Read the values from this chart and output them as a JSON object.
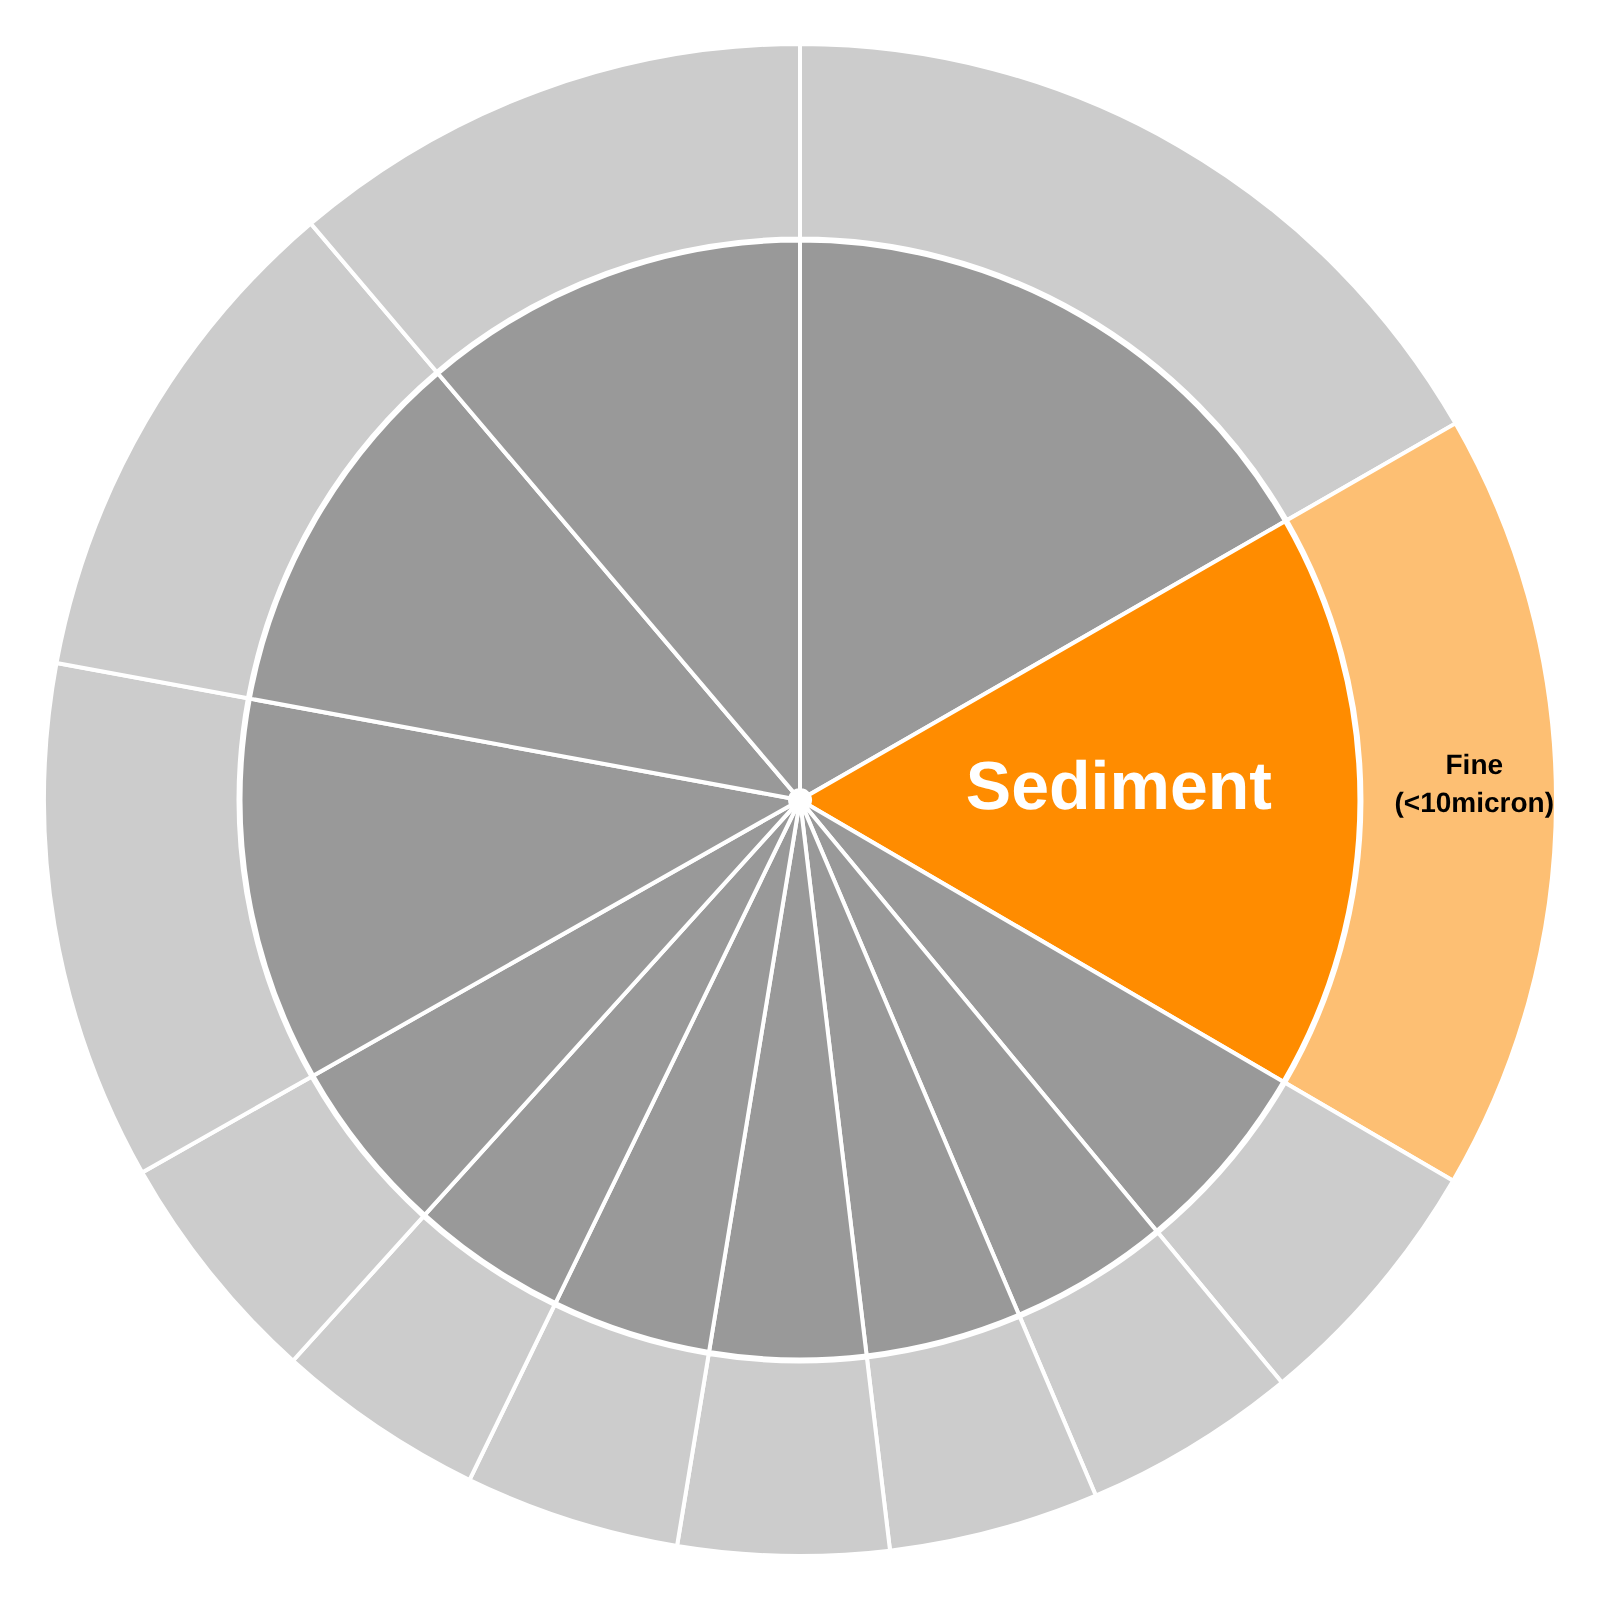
{
  "chart_data": {
    "type": "pie",
    "categories": [
      null,
      "Sediment",
      null,
      null,
      null,
      null,
      null,
      null,
      null,
      null,
      null,
      null
    ],
    "series": [
      {
        "values": [
          16.7,
          16.7,
          5.6,
          4.6,
          4.5,
          4.5,
          4.6,
          4.5,
          5.1,
          11.1,
          10.9,
          11.2
        ],
        "colors": [
          "#999999",
          "#ff8c00",
          "#999999",
          "#999999",
          "#999999",
          "#999999",
          "#999999",
          "#999999",
          "#999999",
          "#999999",
          "#999999",
          "#999999"
        ]
      },
      {
        "values": [
          16.7,
          16.7,
          5.6,
          4.6,
          4.5,
          4.5,
          4.6,
          4.5,
          5.1,
          11.1,
          10.9,
          11.2
        ],
        "colors": [
          "#cccccc",
          "#fdbf73",
          "#cccccc",
          "#cccccc",
          "#cccccc",
          "#cccccc",
          "#cccccc",
          "#cccccc",
          "#cccccc",
          "#cccccc",
          "#cccccc",
          "#cccccc"
        ],
        "value_labels": [
          null,
          "Fine (<10micron)",
          null,
          null,
          null,
          null,
          null,
          null,
          null,
          null,
          null,
          null
        ]
      }
    ]
  }
}
